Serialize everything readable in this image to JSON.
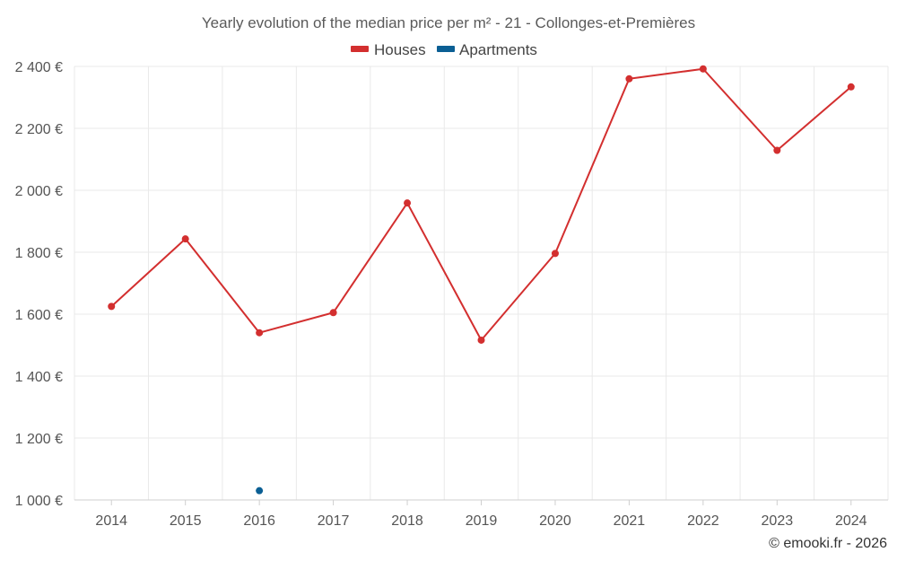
{
  "chart_data": {
    "type": "line",
    "title": "Yearly evolution of the median price per m² - 21 - Collonges-et-Premières",
    "categories": [
      "2014",
      "2015",
      "2016",
      "2017",
      "2018",
      "2019",
      "2020",
      "2021",
      "2022",
      "2023",
      "2024"
    ],
    "series": [
      {
        "name": "Houses",
        "color": "#d32f2f",
        "values": [
          1625,
          1843,
          1540,
          1605,
          1959,
          1516,
          1796,
          2360,
          2392,
          2129,
          2334
        ]
      },
      {
        "name": "Apartments",
        "color": "#0b5f94",
        "values": [
          null,
          null,
          1030,
          null,
          null,
          null,
          null,
          null,
          null,
          null,
          null
        ]
      }
    ],
    "ylim": [
      1000,
      2400
    ],
    "yticks": [
      1000,
      1200,
      1400,
      1600,
      1800,
      2000,
      2200,
      2400
    ],
    "ytick_labels": [
      "1 000 €",
      "1 200 €",
      "1 400 €",
      "1 600 €",
      "1 800 €",
      "2 000 €",
      "2 200 €",
      "2 400 €"
    ],
    "xlabel": "",
    "ylabel": "",
    "grid": true,
    "legend_position": "top-center"
  },
  "footer": {
    "credit": "© emooki.fr - 2026"
  }
}
